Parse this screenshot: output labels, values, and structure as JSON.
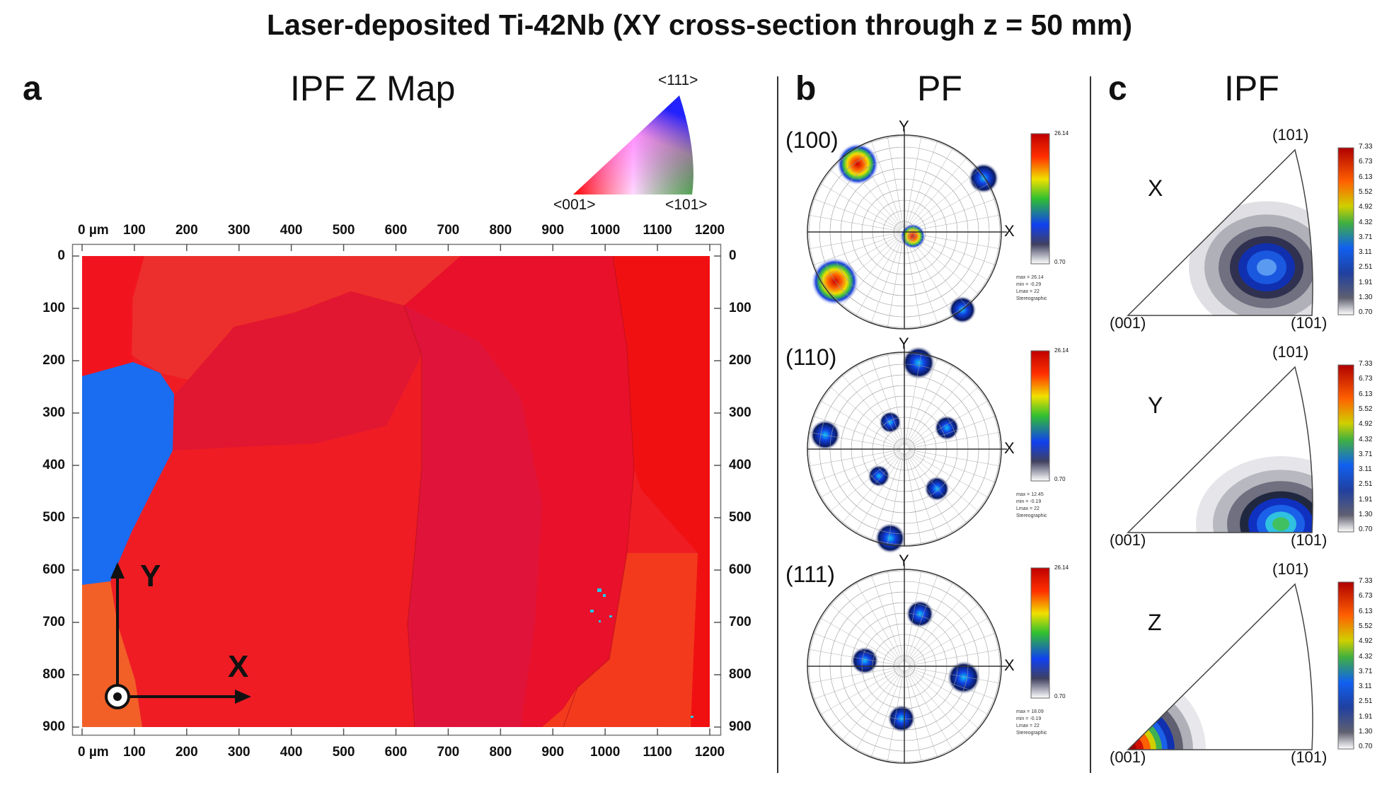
{
  "title": "Laser-deposited Ti-42Nb (XY cross-section through z = 50 mm)",
  "panel_a": {
    "letter": "a",
    "title": "IPF Z Map",
    "key_labels": {
      "top": "<111>",
      "left": "<001>",
      "right": "<101>"
    },
    "unit_label": "0  µm",
    "x_ticks": [
      "100",
      "200",
      "300",
      "400",
      "500",
      "600",
      "700",
      "800",
      "900",
      "1000",
      "1100",
      "1200"
    ],
    "y_ticks": [
      "0",
      "100",
      "200",
      "300",
      "400",
      "500",
      "600",
      "700",
      "800",
      "900"
    ],
    "axis_y": "Y",
    "axis_x": "X"
  },
  "panel_b": {
    "letter": "b",
    "title": "PF",
    "plots": [
      {
        "label": "(100)",
        "ylabel": "Y",
        "xlabel": "X",
        "scale_max": "26.14",
        "scale_min": "0.70",
        "stats": [
          "max = 26.14",
          "min = -0.29",
          "Lmax = 22",
          "Stereographic"
        ]
      },
      {
        "label": "(110)",
        "ylabel": "Y",
        "xlabel": "X",
        "scale_max": "26.14",
        "scale_min": "0.70",
        "stats": [
          "max = 12.45",
          "min = -0.19",
          "Lmax = 22",
          "Stereographic"
        ]
      },
      {
        "label": "(111)",
        "ylabel": "Y",
        "xlabel": "X",
        "scale_max": "26.14",
        "scale_min": "0.70",
        "stats": [
          "max = 18.09",
          "min = -0.19",
          "Lmax = 22",
          "Stereographic"
        ]
      }
    ]
  },
  "panel_c": {
    "letter": "c",
    "title": "IPF",
    "plots": [
      {
        "dir": "X",
        "top": "(101)",
        "left": "(001)",
        "right": "(101)"
      },
      {
        "dir": "Y",
        "top": "(101)",
        "left": "(001)",
        "right": "(101)"
      },
      {
        "dir": "Z",
        "top": "(101)",
        "left": "(001)",
        "right": "(101)"
      }
    ],
    "scale": [
      "7.33",
      "6.73",
      "6.13",
      "5.52",
      "4.92",
      "4.32",
      "3.71",
      "3.11",
      "2.51",
      "1.91",
      "1.30",
      "0.70"
    ]
  },
  "colors": {
    "grain_red": "#f01a2a",
    "grain_blue": "#1a6cf0",
    "grain_orange": "#f26028"
  }
}
